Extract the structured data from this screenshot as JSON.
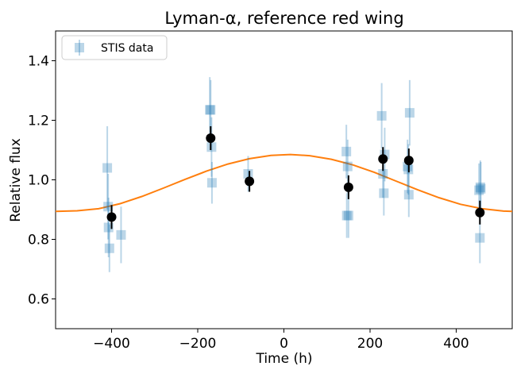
{
  "chart_data": {
    "type": "scatter",
    "title": "Lyman-α, reference red wing",
    "xlabel": "Time (h)",
    "ylabel": "Relative flux",
    "xlim": [
      -530,
      530
    ],
    "ylim": [
      0.5,
      1.5
    ],
    "xticks": [
      -400,
      -200,
      0,
      200,
      400
    ],
    "yticks": [
      0.6,
      0.8,
      1.0,
      1.2,
      1.4
    ],
    "xtick_labels": [
      "−400",
      "−200",
      "0",
      "200",
      "400"
    ],
    "ytick_labels": [
      "0.6",
      "0.8",
      "1.0",
      "1.2",
      "1.4"
    ],
    "grid": false,
    "legend": {
      "placement": "top-left",
      "entries": [
        "STIS data"
      ]
    },
    "colors": {
      "stis": "#1f77b4",
      "binned": "#000000",
      "model": "#ff7f0e"
    },
    "series": [
      {
        "name": "STIS data",
        "style": "translucent squares with error bars",
        "points": [
          {
            "x": -410,
            "y": 1.04,
            "err": 0.14
          },
          {
            "x": -408,
            "y": 0.91,
            "err": 0.11
          },
          {
            "x": -407,
            "y": 0.84,
            "err": 0.1
          },
          {
            "x": -405,
            "y": 0.77,
            "err": 0.08
          },
          {
            "x": -378,
            "y": 0.815,
            "err": 0.095
          },
          {
            "x": -172,
            "y": 1.235,
            "err": 0.11
          },
          {
            "x": -170,
            "y": 1.235,
            "err": 0.1
          },
          {
            "x": -168,
            "y": 1.11,
            "err": 0.1
          },
          {
            "x": -167,
            "y": 0.99,
            "err": 0.07
          },
          {
            "x": -83,
            "y": 1.02,
            "err": 0.06
          },
          {
            "x": 145,
            "y": 1.095,
            "err": 0.09
          },
          {
            "x": 146,
            "y": 0.88,
            "err": 0.075
          },
          {
            "x": 148,
            "y": 1.045,
            "err": 0.09
          },
          {
            "x": 150,
            "y": 0.88,
            "err": 0.075
          },
          {
            "x": 227,
            "y": 1.215,
            "err": 0.11
          },
          {
            "x": 230,
            "y": 1.02,
            "err": 0.08
          },
          {
            "x": 232,
            "y": 0.955,
            "err": 0.075
          },
          {
            "x": 234,
            "y": 1.085,
            "err": 0.09
          },
          {
            "x": 287,
            "y": 1.045,
            "err": 0.09
          },
          {
            "x": 289,
            "y": 1.035,
            "err": 0.085
          },
          {
            "x": 290,
            "y": 0.95,
            "err": 0.075
          },
          {
            "x": 292,
            "y": 1.225,
            "err": 0.11
          },
          {
            "x": 453,
            "y": 0.965,
            "err": 0.09
          },
          {
            "x": 455,
            "y": 0.805,
            "err": 0.085
          },
          {
            "x": 456,
            "y": 0.975,
            "err": 0.09
          },
          {
            "x": 457,
            "y": 0.97,
            "err": 0.09
          }
        ]
      },
      {
        "name": "",
        "style": "black circles with error bars",
        "points": [
          {
            "x": -400,
            "y": 0.875,
            "err": 0.04
          },
          {
            "x": -170,
            "y": 1.14,
            "err": 0.04
          },
          {
            "x": -80,
            "y": 0.995,
            "err": 0.035
          },
          {
            "x": 150,
            "y": 0.975,
            "err": 0.04
          },
          {
            "x": 230,
            "y": 1.07,
            "err": 0.04
          },
          {
            "x": 290,
            "y": 1.065,
            "err": 0.04
          },
          {
            "x": 455,
            "y": 0.89,
            "err": 0.04
          }
        ]
      }
    ],
    "model_curve": {
      "name": "",
      "style": "orange line",
      "points": [
        [
          -530,
          0.894
        ],
        [
          -480,
          0.896
        ],
        [
          -430,
          0.903
        ],
        [
          -380,
          0.92
        ],
        [
          -330,
          0.944
        ],
        [
          -280,
          0.972
        ],
        [
          -230,
          1.001
        ],
        [
          -180,
          1.029
        ],
        [
          -130,
          1.053
        ],
        [
          -80,
          1.071
        ],
        [
          -30,
          1.082
        ],
        [
          15,
          1.085
        ],
        [
          60,
          1.081
        ],
        [
          110,
          1.069
        ],
        [
          160,
          1.05
        ],
        [
          210,
          1.025
        ],
        [
          260,
          0.996
        ],
        [
          310,
          0.967
        ],
        [
          360,
          0.94
        ],
        [
          410,
          0.918
        ],
        [
          460,
          0.903
        ],
        [
          510,
          0.895
        ],
        [
          530,
          0.894
        ]
      ]
    }
  }
}
